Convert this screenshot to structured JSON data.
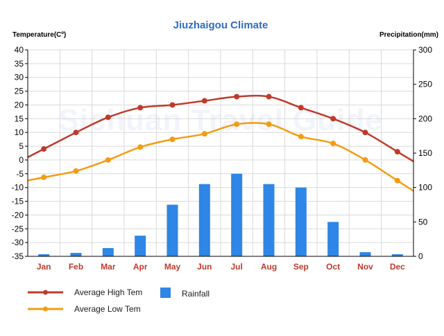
{
  "chart_data": {
    "type": "bar",
    "title": "Jiuzhaigou Climate",
    "watermark": "Sichuan Travel Guide",
    "left_axis_label": "Temperature(Cº)",
    "right_axis_label": "Precipitation(mm)",
    "categories": [
      "Jan",
      "Feb",
      "Mar",
      "Apr",
      "May",
      "Jun",
      "Jul",
      "Aug",
      "Sep",
      "Oct",
      "Nov",
      "Dec"
    ],
    "y_left": {
      "min": -35,
      "max": 40,
      "step": 5
    },
    "y_right": {
      "min": 0,
      "max": 300,
      "step": 50
    },
    "grid": true,
    "legend_position": "bottom",
    "series": [
      {
        "name": "Average High Tem",
        "type": "line",
        "axis": "left",
        "color": "#c0392b",
        "values": [
          4,
          10,
          15.5,
          19,
          20,
          21.5,
          23,
          23,
          19,
          15,
          10,
          3
        ]
      },
      {
        "name": "Average Low Tem",
        "type": "line",
        "axis": "left",
        "color": "#f39c12",
        "values": [
          -6.3,
          -4,
          0,
          4.7,
          7.5,
          9.5,
          13,
          13,
          8.5,
          6,
          0,
          -7.5
        ]
      },
      {
        "name": "Rainfall",
        "type": "bar",
        "axis": "right",
        "color": "#2e86e6",
        "values": [
          3,
          5,
          12,
          30,
          75,
          105,
          120,
          105,
          100,
          50,
          6,
          3
        ]
      }
    ],
    "colors": {
      "title": "#2e6cc7",
      "category_label": "#c0392b"
    }
  }
}
